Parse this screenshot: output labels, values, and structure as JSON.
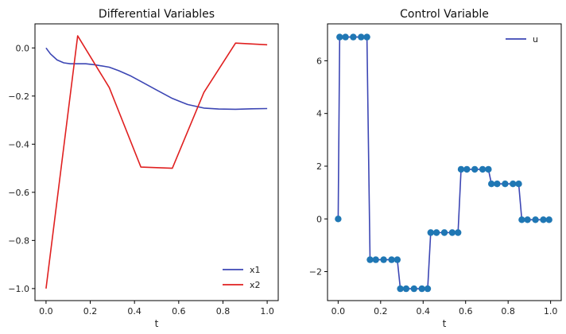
{
  "chart_data": [
    {
      "type": "line",
      "title": "Differential Variables",
      "xlabel": "t",
      "ylabel": "",
      "xlim": [
        -0.05,
        1.05
      ],
      "ylim": [
        -1.05,
        0.1
      ],
      "xticks": [
        0.0,
        0.2,
        0.4,
        0.6,
        0.8,
        1.0
      ],
      "xtick_labels": [
        "0.0",
        "0.2",
        "0.4",
        "0.6",
        "0.8",
        "1.0"
      ],
      "yticks": [
        0.0,
        -0.2,
        -0.4,
        -0.6,
        -0.8,
        -1.0
      ],
      "ytick_labels": [
        "0.0",
        "−0.2",
        "−0.4",
        "−0.6",
        "−0.8",
        "−1.0"
      ],
      "legend_position": "bottom-right",
      "grid": false,
      "series": [
        {
          "name": "x1",
          "color": "#3c46b4",
          "x": [
            0.0,
            0.02,
            0.05,
            0.08,
            0.11,
            0.143,
            0.18,
            0.22,
            0.286,
            0.33,
            0.38,
            0.43,
            0.5,
            0.571,
            0.64,
            0.714,
            0.78,
            0.857,
            0.93,
            1.0
          ],
          "y": [
            0.0,
            -0.025,
            -0.05,
            -0.062,
            -0.066,
            -0.066,
            -0.066,
            -0.07,
            -0.08,
            -0.095,
            -0.115,
            -0.14,
            -0.175,
            -0.21,
            -0.235,
            -0.25,
            -0.254,
            -0.255,
            -0.253,
            -0.252
          ]
        },
        {
          "name": "x2",
          "color": "#e02020",
          "x": [
            0.0,
            0.143,
            0.286,
            0.429,
            0.571,
            0.714,
            0.857,
            1.0
          ],
          "y": [
            -1.0,
            0.05,
            -0.165,
            -0.495,
            -0.5,
            -0.185,
            0.02,
            0.013
          ]
        }
      ]
    },
    {
      "type": "line",
      "title": "Control Variable",
      "xlabel": "t",
      "ylabel": "",
      "xlim": [
        -0.05,
        1.05
      ],
      "ylim": [
        -3.1,
        7.4
      ],
      "xticks": [
        0.0,
        0.2,
        0.4,
        0.6,
        0.8,
        1.0
      ],
      "xtick_labels": [
        "0.0",
        "0.2",
        "0.4",
        "0.6",
        "0.8",
        "1.0"
      ],
      "yticks": [
        6,
        4,
        2,
        0,
        -2
      ],
      "ytick_labels": [
        "6",
        "4",
        "2",
        "0",
        "−2"
      ],
      "legend_position": "top-right",
      "grid": false,
      "series": [
        {
          "name": "u",
          "color": "#3c46b4",
          "marker_color": "#1f77b4",
          "markers": true,
          "x": [
            0.0,
            0.0071,
            0.0345,
            0.0714,
            0.1084,
            0.1357,
            0.15,
            0.1771,
            0.2143,
            0.2514,
            0.2786,
            0.2929,
            0.32,
            0.3571,
            0.3943,
            0.4214,
            0.4357,
            0.4629,
            0.5,
            0.5371,
            0.5643,
            0.5786,
            0.6057,
            0.6429,
            0.68,
            0.7071,
            0.7214,
            0.7486,
            0.7857,
            0.8229,
            0.85,
            0.8643,
            0.8914,
            0.9286,
            0.9657,
            0.9929
          ],
          "y": [
            0.0,
            6.9,
            6.9,
            6.9,
            6.9,
            6.9,
            -1.55,
            -1.55,
            -1.55,
            -1.55,
            -1.55,
            -2.65,
            -2.65,
            -2.65,
            -2.65,
            -2.65,
            -0.52,
            -0.52,
            -0.52,
            -0.52,
            -0.52,
            1.88,
            1.88,
            1.88,
            1.88,
            1.88,
            1.33,
            1.33,
            1.33,
            1.33,
            1.33,
            -0.03,
            -0.03,
            -0.03,
            -0.03,
            -0.03
          ]
        }
      ]
    }
  ]
}
